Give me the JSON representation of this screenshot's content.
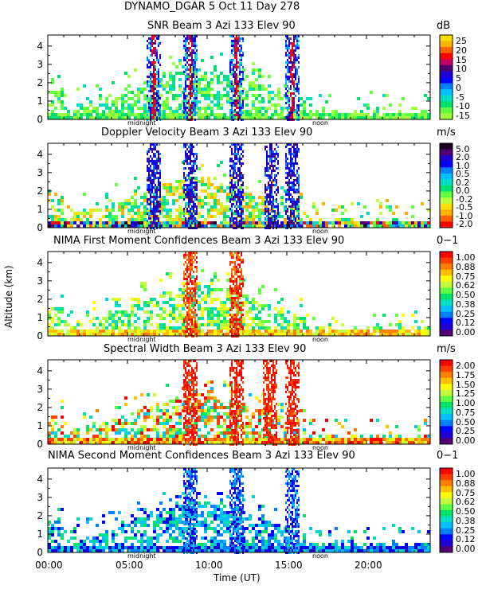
{
  "figure": {
    "title": "DYNAMO_DGAR    5 Oct 11 Day 278",
    "ylabel": "Altitude (km)",
    "xlabel": "Time (UT)",
    "x_ticks": [
      "00:00",
      "05:00",
      "10:00",
      "15:00",
      "20:00"
    ],
    "marker_midnight": "midnight",
    "marker_noon": "noon"
  },
  "chart_data": [
    {
      "type": "heatmap",
      "title": "SNR Beam 3 Azi 133 Elev 90",
      "units": "dB",
      "xlim": [
        0,
        24
      ],
      "ylim": [
        0,
        4.6
      ],
      "y_ticks": [
        "4",
        "3",
        "2",
        "1",
        "0"
      ],
      "colorbar_ticks": [
        "25",
        "20",
        "15",
        "10",
        "5",
        "0",
        "-5",
        "-10",
        "-15"
      ],
      "colorbar_colors": [
        "#ffe000",
        "#ffb000",
        "#ff6000",
        "#ff0000",
        "#c00060",
        "#500070",
        "#2000d0",
        "#0000ff",
        "#0080ff",
        "#00c0ff",
        "#00e0c0",
        "#00e070",
        "#60ff40",
        "#a0ff40"
      ],
      "dense_columns_hours": [
        6.6,
        8.9,
        11.8,
        15.3
      ],
      "background_color": "#7cfc40"
    },
    {
      "type": "heatmap",
      "title": "Doppler Velocity Beam 3 Azi 133 Elev 90",
      "units": "m/s",
      "xlim": [
        0,
        24
      ],
      "ylim": [
        0,
        4.6
      ],
      "y_ticks": [
        "4",
        "3",
        "2",
        "1",
        "0"
      ],
      "colorbar_ticks": [
        "5.0",
        "2.0",
        "1.0",
        "0.5",
        "0.2",
        "0.0",
        "-0.2",
        "-0.5",
        "-1.0",
        "-2.0"
      ],
      "colorbar_colors": [
        "#200020",
        "#500070",
        "#2000d0",
        "#0000ff",
        "#0080ff",
        "#00c0ff",
        "#00e0c0",
        "#00e070",
        "#60ff40",
        "#c0ff40",
        "#ffe000",
        "#ffb000",
        "#ff6000",
        "#ff0000"
      ],
      "dense_columns_hours": [
        6.6,
        8.9,
        11.8,
        14.0,
        15.3
      ],
      "background_color": "#00e070"
    },
    {
      "type": "heatmap",
      "title": "NIMA First Moment Confidences Beam 3 Azi 133 Elev 90",
      "units": "0−1",
      "xlim": [
        0,
        24
      ],
      "ylim": [
        0,
        4.6
      ],
      "y_ticks": [
        "4",
        "3",
        "2",
        "1",
        "0"
      ],
      "colorbar_ticks": [
        "1.00",
        "0.88",
        "0.75",
        "0.62",
        "0.50",
        "0.38",
        "0.25",
        "0.12",
        "0.00"
      ],
      "colorbar_colors": [
        "#ff0000",
        "#ff4000",
        "#ff8000",
        "#ffc000",
        "#ffff00",
        "#c0ff40",
        "#60ff40",
        "#00e070",
        "#00e0c0",
        "#00c0ff",
        "#0080ff",
        "#0000ff",
        "#2000d0",
        "#500070"
      ],
      "dense_columns_hours": [
        8.9,
        11.8
      ],
      "background_color": "#40e080"
    },
    {
      "type": "heatmap",
      "title": "Spectral Width Beam 3 Azi 133 Elev 90",
      "units": "m/s",
      "xlim": [
        0,
        24
      ],
      "ylim": [
        0,
        4.6
      ],
      "y_ticks": [
        "4",
        "3",
        "2",
        "1",
        "0"
      ],
      "colorbar_ticks": [
        "2.00",
        "1.75",
        "1.50",
        "1.25",
        "1.00",
        "0.75",
        "0.50",
        "0.25",
        "0.00"
      ],
      "colorbar_colors": [
        "#ff0000",
        "#ff4000",
        "#ff8000",
        "#ffc000",
        "#ffff00",
        "#c0ff40",
        "#60ff40",
        "#00e070",
        "#00e0c0",
        "#00c0ff",
        "#0080ff",
        "#0000ff",
        "#2000d0",
        "#500070"
      ],
      "dense_columns_hours": [
        8.9,
        11.8,
        13.9,
        15.3
      ],
      "background_color": "#ff0000"
    },
    {
      "type": "heatmap",
      "title": "NIMA Second Moment Confidences Beam 3 Azi 133 Elev 90",
      "units": "0−1",
      "xlim": [
        0,
        24
      ],
      "ylim": [
        0,
        4.6
      ],
      "y_ticks": [
        "4",
        "3",
        "2",
        "1",
        "0"
      ],
      "colorbar_ticks": [
        "1.00",
        "0.88",
        "0.75",
        "0.62",
        "0.50",
        "0.38",
        "0.25",
        "0.12",
        "0.00"
      ],
      "colorbar_colors": [
        "#ff0000",
        "#ff4000",
        "#ff8000",
        "#ffc000",
        "#ffff00",
        "#c0ff40",
        "#60ff40",
        "#00e070",
        "#00e0c0",
        "#00c0ff",
        "#0080ff",
        "#0000ff",
        "#2000d0",
        "#500070"
      ],
      "dense_columns_hours": [
        8.9,
        11.8,
        15.3
      ],
      "background_color": "#00c0ff"
    }
  ]
}
